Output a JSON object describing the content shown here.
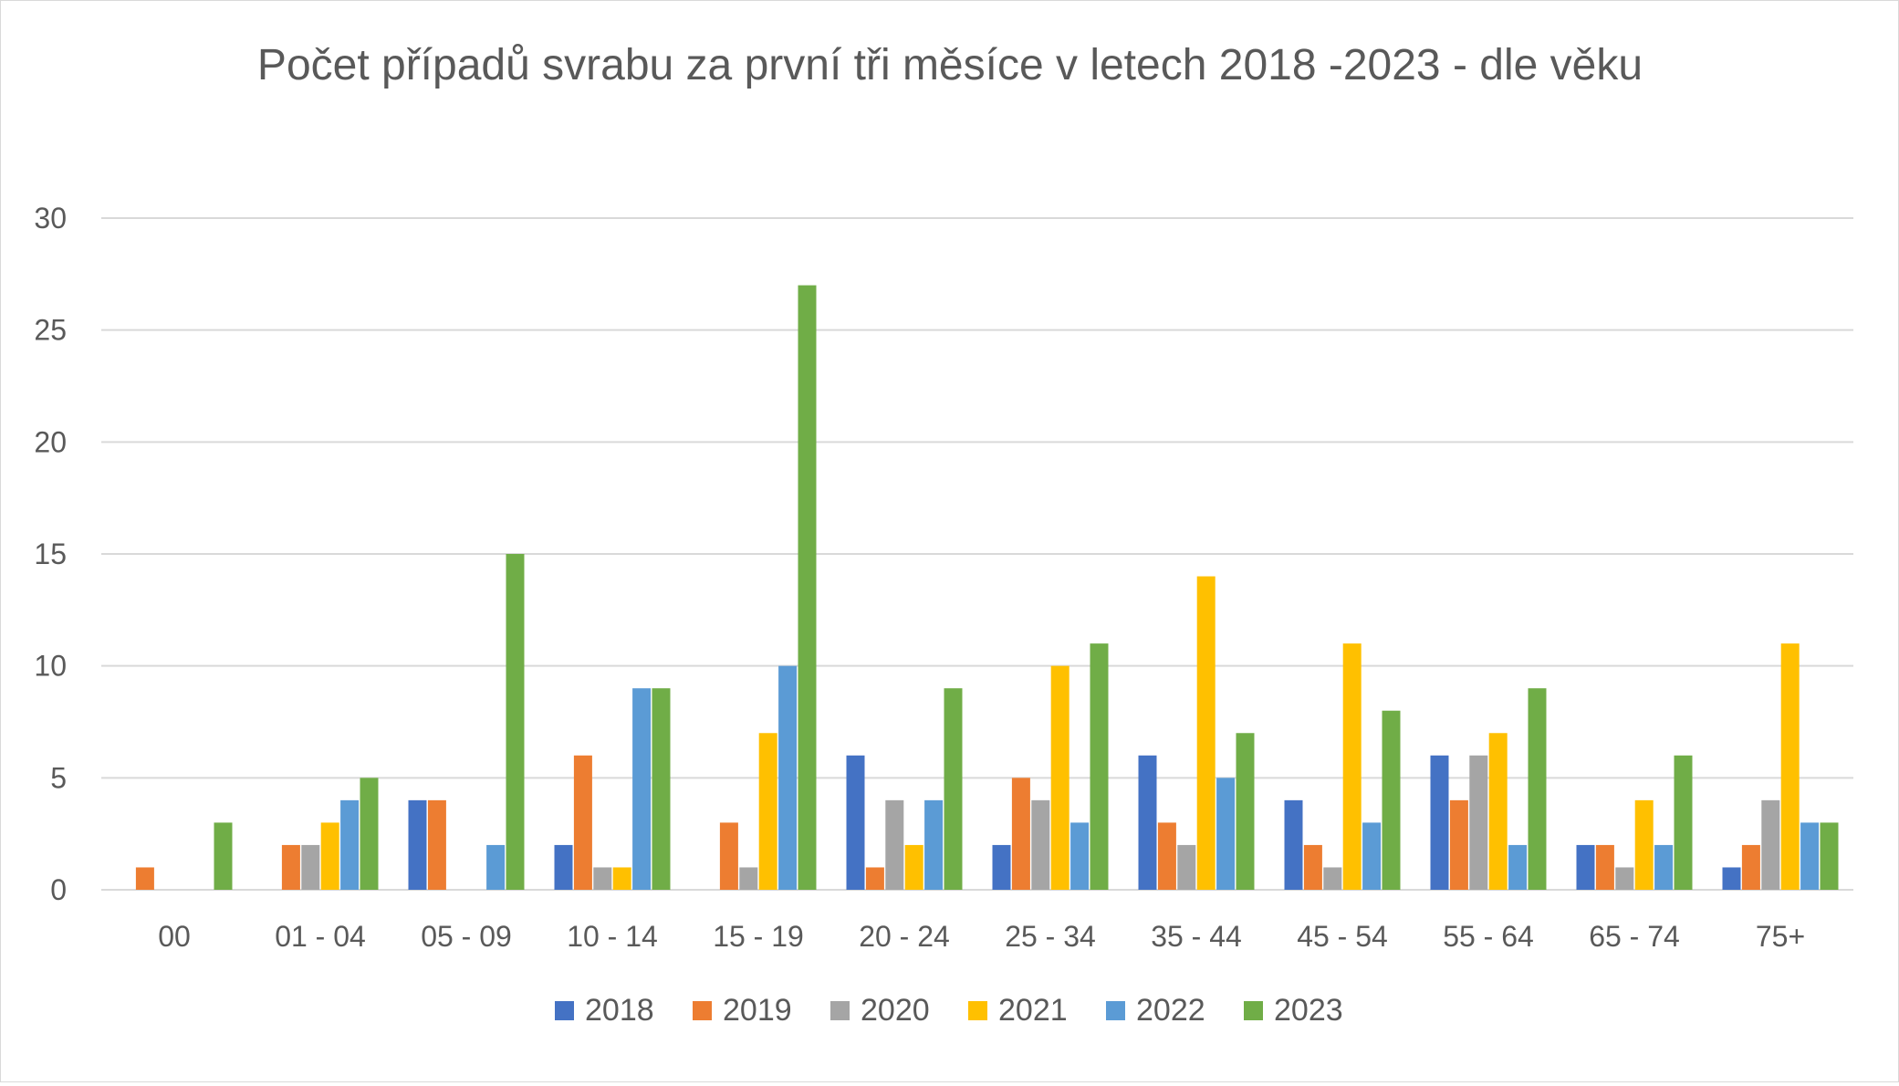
{
  "chart_data": {
    "type": "bar",
    "title": "Počet případů svrabu za první tři měsíce v letech 2018 -2023 - dle věku",
    "xlabel": "",
    "ylabel": "",
    "ylim": [
      0,
      30
    ],
    "yticks": [
      0,
      5,
      10,
      15,
      20,
      25,
      30
    ],
    "grid": true,
    "legend_position": "bottom",
    "categories": [
      "00",
      "01 - 04",
      "05 - 09",
      "10 - 14",
      "15 - 19",
      "20 - 24",
      "25 - 34",
      "35 - 44",
      "45 - 54",
      "55 - 64",
      "65 - 74",
      "75+"
    ],
    "series": [
      {
        "name": "2018",
        "color": "#4472C4",
        "values": [
          0,
          0,
          4,
          2,
          0,
          6,
          2,
          6,
          4,
          6,
          2,
          1
        ]
      },
      {
        "name": "2019",
        "color": "#ED7D31",
        "values": [
          1,
          2,
          4,
          6,
          3,
          1,
          5,
          3,
          2,
          4,
          2,
          2
        ]
      },
      {
        "name": "2020",
        "color": "#A5A5A5",
        "values": [
          0,
          2,
          0,
          1,
          1,
          4,
          4,
          2,
          1,
          6,
          1,
          4
        ]
      },
      {
        "name": "2021",
        "color": "#FFC000",
        "values": [
          0,
          3,
          0,
          1,
          7,
          2,
          10,
          14,
          11,
          7,
          4,
          11
        ]
      },
      {
        "name": "2022",
        "color": "#5B9BD5",
        "values": [
          0,
          4,
          2,
          9,
          10,
          4,
          3,
          5,
          3,
          2,
          2,
          3
        ]
      },
      {
        "name": "2023",
        "color": "#70AD47",
        "values": [
          3,
          5,
          15,
          9,
          27,
          9,
          11,
          7,
          8,
          9,
          6,
          3
        ]
      }
    ]
  }
}
